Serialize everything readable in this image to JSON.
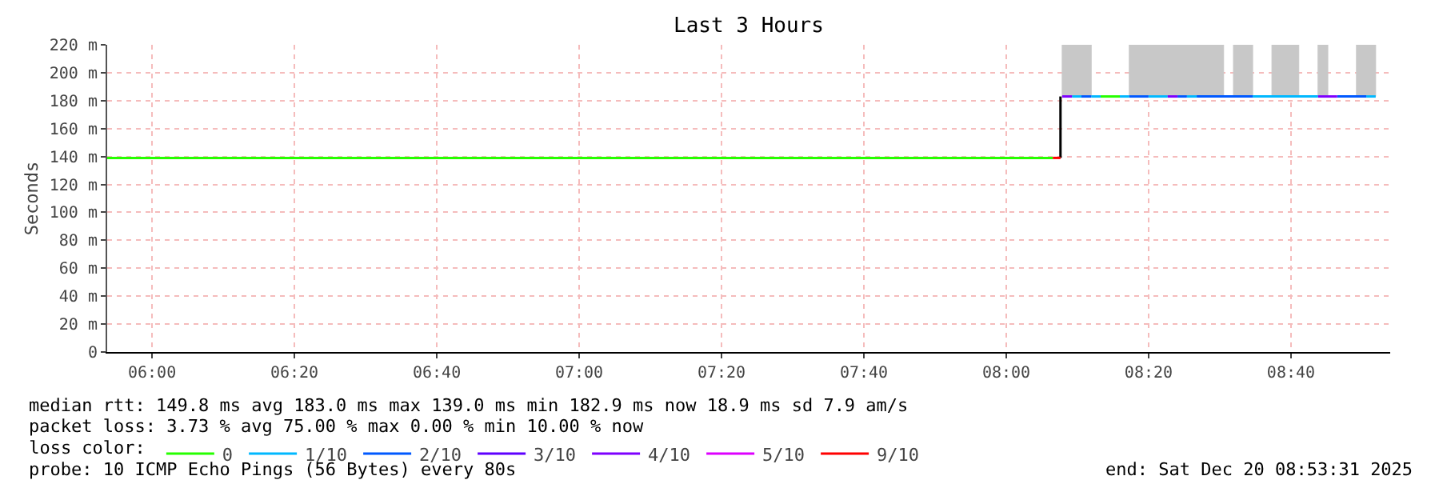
{
  "chart_data": {
    "type": "step",
    "title": "Last 3 Hours",
    "ylabel": "Seconds",
    "legend_title": "loss color:",
    "xlim": [
      5.895,
      8.899
    ],
    "xticks": [
      {
        "value": 6,
        "label": "06:00"
      },
      {
        "value": 6.3333,
        "label": "06:20"
      },
      {
        "value": 6.6667,
        "label": "06:40"
      },
      {
        "value": 7,
        "label": "07:00"
      },
      {
        "value": 7.3333,
        "label": "07:20"
      },
      {
        "value": 7.6667,
        "label": "07:40"
      },
      {
        "value": 8,
        "label": "08:00"
      },
      {
        "value": 8.3333,
        "label": "08:20"
      },
      {
        "value": 8.6667,
        "label": "08:40"
      }
    ],
    "ylim": [
      0,
      220
    ],
    "yticks": [
      0,
      {
        "value": 20,
        "label": "20 m"
      },
      {
        "value": 40,
        "label": "40 m"
      },
      {
        "value": 60,
        "label": "60 m"
      },
      {
        "value": 80,
        "label": "80 m"
      },
      {
        "value": 100,
        "label": "100 m"
      },
      {
        "value": 120,
        "label": "120 m"
      },
      {
        "value": 140,
        "label": "140 m"
      },
      {
        "value": 160,
        "label": "160 m"
      },
      {
        "value": 180,
        "label": "180 m"
      },
      {
        "value": 200,
        "label": "200 m"
      },
      {
        "value": 220,
        "label": "220 m"
      }
    ],
    "grid": true,
    "legend": "bottom",
    "marker": "none",
    "line_style": "solid",
    "series": [
      {
        "type": "area",
        "color": "#c8c8c8",
        "x": [
          8.131,
          8.199,
          null,
          8.288,
          8.509,
          null,
          8.532,
          8.577,
          null,
          8.622,
          8.685,
          null,
          8.73,
          8.753,
          null,
          8.82,
          8.865
        ],
        "values": [
          220,
          220,
          null,
          220,
          220,
          null,
          220,
          220,
          null,
          220,
          220,
          null,
          220,
          220,
          null,
          220,
          220
        ]
      },
      {
        "type": "line",
        "color": "#000000",
        "x": [
          8.127,
          8.127
        ],
        "values": [
          139,
          183
        ]
      },
      {
        "name": "0",
        "color": "#26ff00",
        "x": [
          5.895,
          8.109,
          8.11,
          8.221,
          8.266
        ],
        "values": [
          139,
          139,
          null,
          183,
          183
        ]
      },
      {
        "name": "1/10",
        "color": "#00b8ff",
        "x": [
          8.154,
          8.176,
          8.177,
          8.199,
          8.221,
          8.222,
          8.266,
          8.288,
          8.289,
          8.333,
          8.378,
          8.379,
          8.423,
          8.446,
          8.447,
          8.577,
          8.73,
          8.731,
          8.843,
          8.865
        ],
        "values": [
          183,
          183,
          null,
          183,
          183,
          null,
          183,
          183,
          null,
          183,
          183,
          null,
          183,
          183,
          null,
          183,
          183,
          null,
          183,
          183
        ]
      },
      {
        "name": "2/10",
        "color": "#0059ff",
        "x": [
          8.176,
          8.199,
          8.2,
          8.288,
          8.333,
          8.334,
          8.401,
          8.423,
          8.424,
          8.446,
          8.577,
          8.578,
          8.775,
          8.843
        ],
        "values": [
          183,
          183,
          null,
          183,
          183,
          null,
          183,
          183,
          null,
          183,
          183,
          null,
          183,
          183
        ]
      },
      {
        "name": "3/10",
        "color": "#5e00ff"
      },
      {
        "name": "4/10",
        "color": "#7e00ff",
        "x": [
          8.131,
          8.154,
          8.155,
          8.378,
          8.401,
          8.402,
          8.73,
          8.775
        ],
        "values": [
          183,
          183,
          null,
          183,
          183,
          null,
          183,
          183
        ]
      },
      {
        "name": "5/10",
        "color": "#dd00ff"
      },
      {
        "name": "9/10",
        "color": "#ff0000",
        "x": [
          8.109,
          8.127
        ],
        "values": [
          139,
          139
        ]
      }
    ],
    "annotations": [
      "median rtt: 149.8 ms avg 183.0 ms max 139.0 ms min 182.9 ms now 18.9 ms sd 7.9 am/s",
      "packet loss: 3.73 % avg 75.00 % max 0.00 % min 10.00 % now",
      "probe: 10 ICMP Echo Pings (56 Bytes) every 80s",
      "end: Sat Dec 20 08:53:31 2025"
    ]
  }
}
